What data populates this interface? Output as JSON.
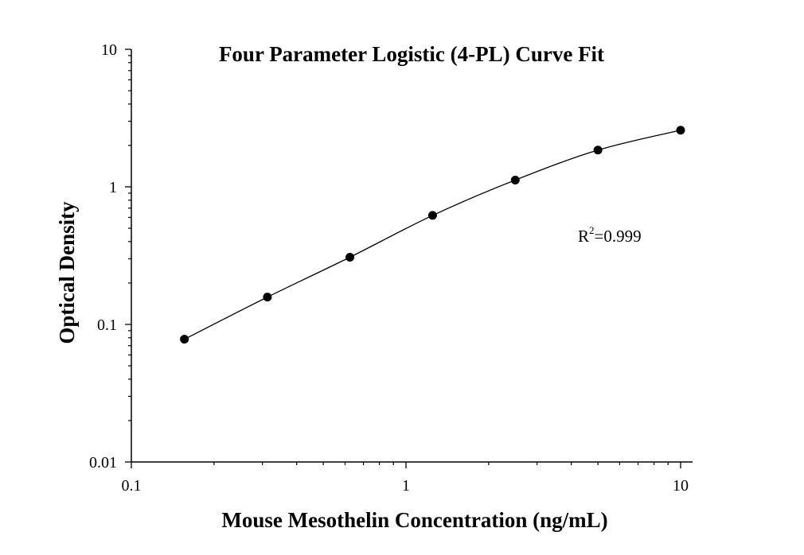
{
  "chart_data": {
    "type": "scatter",
    "title": "Four Parameter Logistic (4-PL) Curve Fit",
    "xlabel": "Mouse Mesothelin Concentration (ng/mL)",
    "ylabel": "Optical Density",
    "x_scale": "log",
    "y_scale": "log",
    "xlim": [
      0.1,
      10
    ],
    "ylim": [
      0.01,
      10
    ],
    "x_ticks": [
      "0.1",
      "1",
      "10"
    ],
    "y_ticks": [
      "10",
      "1",
      "0.1",
      "0.01"
    ],
    "grid": false,
    "series": [
      {
        "x": [
          0.156,
          0.313,
          0.625,
          1.25,
          2.5,
          5,
          10
        ],
        "y": [
          0.078,
          0.158,
          0.308,
          0.62,
          1.12,
          1.85,
          2.58
        ]
      }
    ],
    "fit_curve": "4-PL",
    "annotation": {
      "base": "R",
      "superscript": "2",
      "text": "=0.999"
    }
  }
}
